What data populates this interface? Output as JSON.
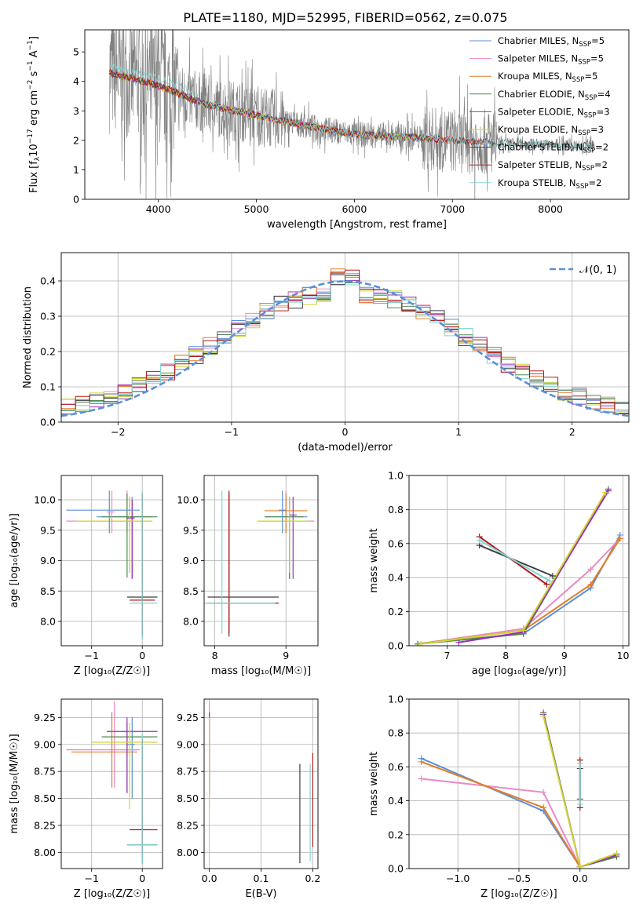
{
  "title": "PLATE=1180, MJD=52995, FIBERID=0562, z=0.075",
  "colors": {
    "grid": "#b0b0b0",
    "spectrum": "#808080",
    "normal": "#5b8fd9",
    "models": [
      "#5b8fd9",
      "#e98ac5",
      "#e37d25",
      "#4e8a4e",
      "#9a2fbf",
      "#cfd630",
      "#3f3f3f",
      "#b01919",
      "#85d4d4"
    ]
  },
  "legend": {
    "top": [
      {
        "name": "Chabrier MILES, N",
        "sub": "SSP",
        "tail": "=5"
      },
      {
        "name": "Salpeter MILES, N",
        "sub": "SSP",
        "tail": "=5"
      },
      {
        "name": "Kroupa MILES, N",
        "sub": "SSP",
        "tail": "=5"
      },
      {
        "name": "Chabrier ELODIE, N",
        "sub": "SSP",
        "tail": "=4"
      },
      {
        "name": "Salpeter ELODIE, N",
        "sub": "SSP",
        "tail": "=3"
      },
      {
        "name": "Kroupa ELODIE, N",
        "sub": "SSP",
        "tail": "=3"
      },
      {
        "name": "Chabrier STELIB, N",
        "sub": "SSP",
        "tail": "=2"
      },
      {
        "name": "Salpeter STELIB, N",
        "sub": "SSP",
        "tail": "=2"
      },
      {
        "name": "Kroupa STELIB, N",
        "sub": "SSP",
        "tail": "=2"
      }
    ],
    "residual": "𝒩(0, 1)"
  },
  "chart_data": [
    {
      "type": "line",
      "id": "spectrum",
      "title": "PLATE=1180, MJD=52995, FIBERID=0562, z=0.075",
      "xlabel": "wavelength [Angstrom, rest frame]",
      "ylabel": {
        "pre": "Flux [f",
        "sub": "λ",
        "mid": "10",
        "sup": "−17",
        "post": " erg cm",
        "sup2": "−2",
        "post2": " s",
        "sup3": "−1",
        "post3": " A",
        "sup4": "−1",
        "end": "]"
      },
      "xlim": [
        3250,
        8800
      ],
      "ylim": [
        0,
        5.75
      ],
      "xticks": [
        4000,
        5000,
        6000,
        7000,
        8000
      ],
      "xticklabels": [
        "4000",
        "5000",
        "6000",
        "7000",
        "8000"
      ],
      "yticks": [
        0,
        1,
        2,
        3,
        4,
        5
      ],
      "yticklabels": [
        "0",
        "1",
        "2",
        "3",
        "4",
        "5"
      ],
      "grid": false,
      "legend_position": "upper right",
      "data_range_x": [
        3500,
        8450
      ],
      "continuum_x": [
        3500,
        3600,
        3800,
        4000,
        4200,
        4500,
        5000,
        5500,
        6000,
        6500,
        7000,
        7500,
        8000,
        8450
      ],
      "continuum_y": [
        4.3,
        4.2,
        4.05,
        3.85,
        3.6,
        3.2,
        2.85,
        2.5,
        2.2,
        2.12,
        2.0,
        1.9,
        1.85,
        1.8
      ]
    },
    {
      "type": "histogram",
      "id": "residuals",
      "xlabel": "(data-model)/error",
      "ylabel": "Normed distribution",
      "xlim": [
        -2.5,
        2.5
      ],
      "ylim": [
        0,
        0.48
      ],
      "xticks": [
        -2,
        -1,
        0,
        1,
        2
      ],
      "xticklabels": [
        "−2",
        "−1",
        "0",
        "1",
        "2"
      ],
      "yticks": [
        0.0,
        0.1,
        0.2,
        0.3,
        0.4
      ],
      "yticklabels": [
        "0.0",
        "0.1",
        "0.2",
        "0.3",
        "0.4"
      ],
      "grid": true,
      "legend_position": "upper right",
      "bin_width": 0.125,
      "normal": {
        "mean": 0,
        "sigma": 1
      }
    },
    {
      "type": "errorbar",
      "id": "age-vs-Z",
      "xlabel": "Z [log₁₀(Z/Z☉)]",
      "ylabel": "age  [log₁₀(age/yr)]",
      "xlim": [
        -1.6,
        0.4
      ],
      "ylim": [
        7.6,
        10.4
      ],
      "xticks": [
        -1,
        0
      ],
      "xticklabels": [
        "−1",
        "0"
      ],
      "yticks": [
        8.0,
        8.5,
        9.0,
        9.5,
        10.0
      ],
      "yticklabels": [
        "8.0",
        "8.5",
        "9.0",
        "9.5",
        "10.0"
      ],
      "grid": true,
      "points": [
        {
          "x": -0.2,
          "xe": [
            -0.9,
            0.2
          ],
          "y": 9.72,
          "ye": [
            8.7,
            10.05
          ]
        },
        {
          "x": -0.3,
          "xe": [
            -1.5,
            0.2
          ],
          "y": 9.65,
          "ye": [
            9.45,
            10.15
          ]
        },
        {
          "x": -0.25,
          "xe": [
            -0.3,
            -0.2
          ],
          "y": 9.7,
          "ye": [
            8.8,
            10.05
          ]
        },
        {
          "x": -0.3,
          "xe": [
            -0.8,
            0.3
          ],
          "y": 9.72,
          "ye": [
            8.72,
            10.1
          ]
        },
        {
          "x": -0.2,
          "xe": [
            -0.3,
            -0.15
          ],
          "y": 9.7,
          "ye": [
            8.7,
            10.0
          ]
        },
        {
          "x": -0.25,
          "xe": [
            -1.3,
            0.2
          ],
          "y": 9.65,
          "ye": [
            8.8,
            10.05
          ]
        },
        {
          "x": 0.0,
          "xe": [
            -0.3,
            0.3
          ],
          "y": 8.4,
          "ye": [
            7.75,
            10.1
          ]
        },
        {
          "x": 0.0,
          "xe": [
            -0.25,
            0.25
          ],
          "y": 8.35,
          "ye": [
            7.8,
            10.1
          ]
        },
        {
          "x": 0.0,
          "xe": [
            -0.25,
            0.3
          ],
          "y": 8.3,
          "ye": [
            7.7,
            10.15
          ]
        },
        {
          "x": -0.65,
          "xe": [
            -1.5,
            -0.05
          ],
          "y": 9.83,
          "ye": [
            9.45,
            10.15
          ]
        },
        {
          "x": -0.6,
          "xe": [
            -0.7,
            -0.55
          ],
          "y": 9.8,
          "ye": [
            9.45,
            10.15
          ]
        }
      ]
    },
    {
      "type": "errorbar",
      "id": "age-vs-mass",
      "xlabel": "mass [log₁₀(M/M☉)]",
      "ylabel": "",
      "xlim": [
        7.85,
        9.45
      ],
      "ylim": [
        7.6,
        10.4
      ],
      "xticks": [
        8,
        9
      ],
      "xticklabels": [
        "8",
        "9"
      ],
      "yticks": [
        8.0,
        8.5,
        9.0,
        9.5,
        10.0
      ],
      "yticklabels": [
        "8.0",
        "8.5",
        "9.0",
        "9.5",
        "10.0"
      ],
      "grid": true,
      "points": [
        {
          "x": 9.05,
          "xe": [
            8.7,
            9.3
          ],
          "y": 9.72,
          "ye": [
            8.7,
            10.05
          ]
        },
        {
          "x": 9.0,
          "xe": [
            8.6,
            9.4
          ],
          "y": 9.65,
          "ye": [
            9.45,
            10.15
          ]
        },
        {
          "x": 9.0,
          "xe": [
            8.7,
            9.3
          ],
          "y": 9.82,
          "ye": [
            9.45,
            10.1
          ]
        },
        {
          "x": 9.05,
          "xe": [
            8.7,
            9.25
          ],
          "y": 9.72,
          "ye": [
            8.7,
            10.05
          ]
        },
        {
          "x": 9.1,
          "xe": [
            9.05,
            9.15
          ],
          "y": 9.75,
          "ye": [
            8.7,
            10.05
          ]
        },
        {
          "x": 9.05,
          "xe": [
            8.6,
            9.3
          ],
          "y": 9.65,
          "ye": [
            8.8,
            10.05
          ]
        },
        {
          "x": 8.2,
          "xe": [
            7.9,
            8.9
          ],
          "y": 8.4,
          "ye": [
            7.75,
            10.1
          ]
        },
        {
          "x": 8.2,
          "xe": [
            7.9,
            8.9
          ],
          "y": 8.3,
          "ye": [
            7.8,
            10.15
          ]
        },
        {
          "x": 8.1,
          "xe": [
            7.85,
            8.85
          ],
          "y": 8.3,
          "ye": [
            7.8,
            10.15
          ]
        },
        {
          "x": 8.95,
          "xe": [
            8.9,
            9.0
          ],
          "y": 9.83,
          "ye": [
            9.45,
            10.15
          ]
        }
      ]
    },
    {
      "type": "line",
      "id": "weight-vs-age",
      "xlabel": "age  [log₁₀(age/yr)]",
      "ylabel": "mass weight",
      "xlim": [
        6.35,
        10.1
      ],
      "ylim": [
        0,
        1.0
      ],
      "xticks": [
        7,
        8,
        9,
        10
      ],
      "xticklabels": [
        "7",
        "8",
        "9",
        "10"
      ],
      "yticks": [
        0.0,
        0.2,
        0.4,
        0.6,
        0.8,
        1.0
      ],
      "yticklabels": [
        "0.0",
        "0.2",
        "0.4",
        "0.6",
        "0.8",
        "1.0"
      ],
      "grid": true,
      "series": [
        {
          "x": [
            6.5,
            8.3,
            9.45,
            9.95
          ],
          "y": [
            0.01,
            0.07,
            0.34,
            0.65
          ]
        },
        {
          "x": [
            6.5,
            8.3,
            9.45,
            9.95
          ],
          "y": [
            0.01,
            0.1,
            0.45,
            0.63
          ]
        },
        {
          "x": [
            6.5,
            8.3,
            9.45,
            9.95
          ],
          "y": [
            0.01,
            0.09,
            0.36,
            0.63
          ]
        },
        {
          "x": [
            6.5,
            8.3,
            9.75
          ],
          "y": [
            0.01,
            0.07,
            0.92
          ]
        },
        {
          "x": [
            7.2,
            8.3,
            9.75
          ],
          "y": [
            0.02,
            0.08,
            0.91
          ]
        },
        {
          "x": [
            6.55,
            8.3,
            9.7
          ],
          "y": [
            0.01,
            0.09,
            0.9
          ]
        },
        {
          "x": [
            7.55,
            8.8
          ],
          "y": [
            0.59,
            0.41
          ]
        },
        {
          "x": [
            7.55,
            8.7
          ],
          "y": [
            0.64,
            0.36
          ]
        },
        {
          "x": [
            7.55,
            8.75
          ],
          "y": [
            0.62,
            0.38
          ]
        }
      ]
    },
    {
      "type": "errorbar",
      "id": "mass-vs-Z",
      "xlabel": "Z [log₁₀(Z/Z☉)]",
      "ylabel": "mass [log₁₀(M/M☉)]",
      "xlim": [
        -1.6,
        0.4
      ],
      "ylim": [
        7.85,
        9.42
      ],
      "xticks": [
        -1,
        0
      ],
      "xticklabels": [
        "−1",
        "0"
      ],
      "yticks": [
        8.0,
        8.25,
        8.5,
        8.75,
        9.0,
        9.25
      ],
      "yticklabels": [
        "8.00",
        "8.25",
        "8.50",
        "8.75",
        "9.00",
        "9.25"
      ],
      "grid": true,
      "points": [
        {
          "x": -0.2,
          "xe": [
            -0.3,
            -0.15
          ],
          "y": 9.0,
          "ye": [
            8.5,
            9.25
          ]
        },
        {
          "x": -0.55,
          "xe": [
            -1.5,
            -0.05
          ],
          "y": 8.95,
          "ye": [
            8.6,
            9.4
          ]
        },
        {
          "x": -0.6,
          "xe": [
            -1.4,
            -0.1
          ],
          "y": 8.93,
          "ye": [
            8.6,
            9.3
          ]
        },
        {
          "x": -0.3,
          "xe": [
            -0.8,
            0.3
          ],
          "y": 9.07,
          "ye": [
            8.55,
            9.2
          ]
        },
        {
          "x": -0.3,
          "xe": [
            -0.7,
            0.3
          ],
          "y": 9.12,
          "ye": [
            8.55,
            9.25
          ]
        },
        {
          "x": -0.25,
          "xe": [
            -1.0,
            0.3
          ],
          "y": 9.02,
          "ye": [
            8.4,
            9.2
          ]
        },
        {
          "x": 0.0,
          "xe": [
            -0.3,
            0.3
          ],
          "y": 8.07,
          "ye": [
            7.9,
            9.05
          ]
        },
        {
          "x": 0.0,
          "xe": [
            -0.25,
            0.3
          ],
          "y": 8.21,
          "ye": [
            8.0,
            9.05
          ]
        },
        {
          "x": 0.0,
          "xe": [
            -0.3,
            0.3
          ],
          "y": 8.07,
          "ye": [
            7.9,
            9.1
          ]
        }
      ]
    },
    {
      "type": "errorbar",
      "id": "mass-vs-ebv",
      "xlabel": "E(B-V)",
      "ylabel": "",
      "xlim": [
        -0.01,
        0.21
      ],
      "ylim": [
        7.85,
        9.42
      ],
      "xticks": [
        0.0,
        0.1,
        0.2
      ],
      "xticklabels": [
        "0.0",
        "0.1",
        "0.2"
      ],
      "yticks": [
        8.0,
        8.25,
        8.5,
        8.75,
        9.0,
        9.25
      ],
      "yticklabels": [
        "8.00",
        "8.25",
        "8.50",
        "8.75",
        "9.00",
        "9.25"
      ],
      "grid": true,
      "points": [
        {
          "x": 0.0,
          "y": 9.05,
          "ye": [
            8.5,
            9.25
          ]
        },
        {
          "x": 0.0,
          "y": 9.0,
          "ye": [
            8.6,
            9.4
          ]
        },
        {
          "x": 0.0,
          "y": 9.05,
          "ye": [
            8.5,
            9.3
          ]
        },
        {
          "x": 0.0,
          "y": 9.05,
          "ye": [
            8.55,
            9.25
          ]
        },
        {
          "x": 0.0,
          "y": 9.1,
          "ye": [
            8.55,
            9.3
          ]
        },
        {
          "x": 0.0,
          "y": 9.0,
          "ye": [
            8.4,
            9.25
          ]
        },
        {
          "x": 0.175,
          "y": 8.35,
          "ye": [
            7.9,
            8.82
          ]
        },
        {
          "x": 0.2,
          "y": 8.5,
          "ye": [
            8.05,
            8.92
          ]
        },
        {
          "x": 0.195,
          "y": 8.35,
          "ye": [
            7.92,
            8.82
          ]
        }
      ]
    },
    {
      "type": "line",
      "id": "weight-vs-Z",
      "xlabel": "Z [log₁₀(Z/Z☉)]",
      "ylabel": "mass weight",
      "xlim": [
        -1.4,
        0.4
      ],
      "ylim": [
        0,
        1.0
      ],
      "xticks": [
        -1.0,
        -0.5,
        0.0
      ],
      "xticklabels": [
        "−1.0",
        "−0.5",
        "0.0"
      ],
      "yticks": [
        0.0,
        0.2,
        0.4,
        0.6,
        0.8,
        1.0
      ],
      "yticklabels": [
        "0.0",
        "0.2",
        "0.4",
        "0.6",
        "0.8",
        "1.0"
      ],
      "grid": true,
      "series": [
        {
          "x": [
            -1.3,
            -0.3,
            0.0
          ],
          "y": [
            0.65,
            0.34,
            0.01
          ]
        },
        {
          "x": [
            -1.3,
            -0.3,
            0.0
          ],
          "y": [
            0.53,
            0.45,
            0.01
          ]
        },
        {
          "x": [
            -1.3,
            -0.3,
            0.0
          ],
          "y": [
            0.63,
            0.36,
            0.01
          ]
        },
        {
          "x": [
            -0.3,
            0.0,
            0.3
          ],
          "y": [
            0.92,
            0.01,
            0.07
          ]
        },
        {
          "x": [
            -0.3,
            0.0,
            0.3
          ],
          "y": [
            0.91,
            0.01,
            0.08
          ]
        },
        {
          "x": [
            -0.3,
            0.0,
            0.3
          ],
          "y": [
            0.9,
            0.01,
            0.09
          ]
        },
        {
          "x": [
            0.0,
            0.0
          ],
          "y": [
            0.59,
            0.41
          ]
        },
        {
          "x": [
            0.0,
            0.0
          ],
          "y": [
            0.64,
            0.36
          ]
        },
        {
          "x": [
            0.0,
            0.0
          ],
          "y": [
            0.62,
            0.38
          ]
        }
      ]
    }
  ]
}
